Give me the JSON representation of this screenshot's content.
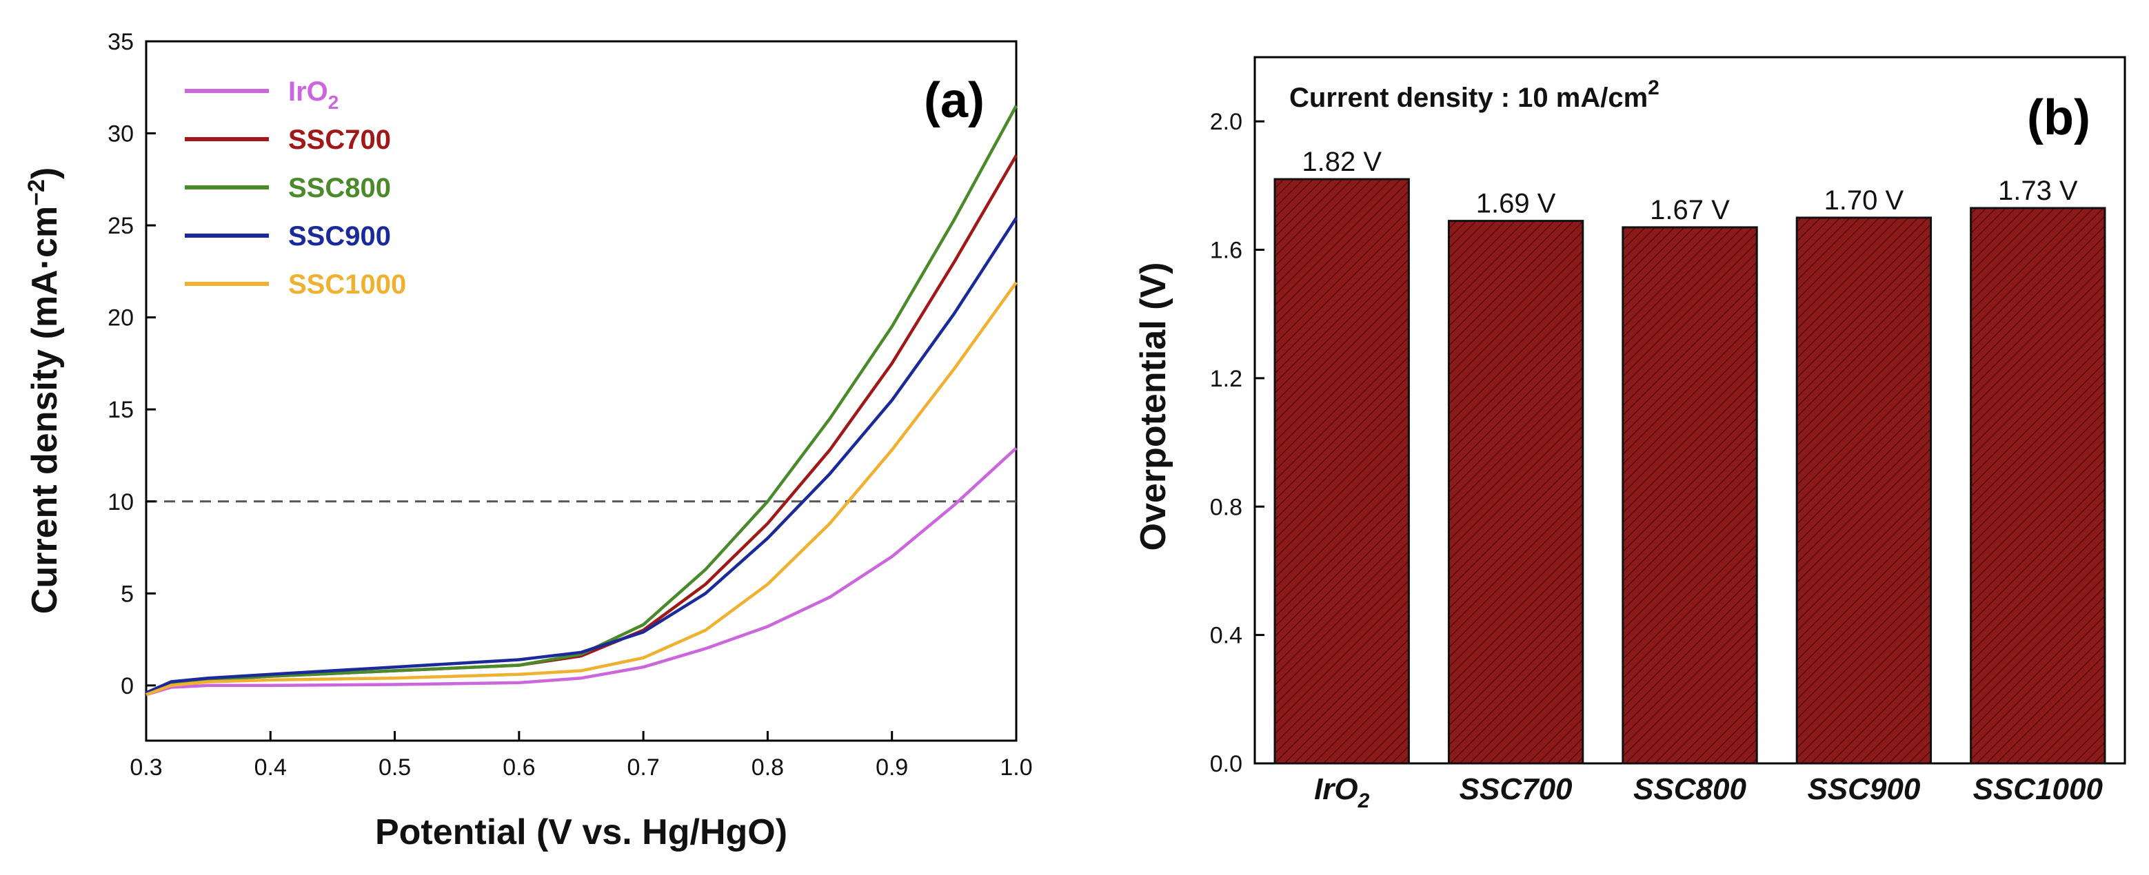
{
  "chart_data": [
    {
      "type": "line",
      "panel_label": "(a)",
      "xlabel": "Potential (V vs. Hg/HgO)",
      "ylabel": {
        "main": "Current density (mA·cm",
        "sup": "−2",
        "close": ")"
      },
      "xlim": [
        0.3,
        1.0
      ],
      "ylim": [
        -3,
        35
      ],
      "xticks": [
        0.3,
        0.4,
        0.5,
        0.6,
        0.7,
        0.8,
        0.9,
        1.0
      ],
      "xtick_labels": [
        "0.3",
        "0.4",
        "0.5",
        "0.6",
        "0.7",
        "0.8",
        "0.9",
        "1.0"
      ],
      "yticks": [
        0,
        5,
        10,
        15,
        20,
        25,
        30,
        35
      ],
      "ytick_labels": [
        "0",
        "5",
        "10",
        "15",
        "20",
        "25",
        "30",
        "35"
      ],
      "reference_line": {
        "y": 10,
        "style": "dashed"
      },
      "series": [
        {
          "name": "IrO",
          "sub": "2",
          "color": "#cc66dd",
          "x": [
            0.3,
            0.32,
            0.35,
            0.4,
            0.5,
            0.6,
            0.65,
            0.7,
            0.75,
            0.8,
            0.85,
            0.9,
            0.95,
            1.0
          ],
          "y": [
            -0.5,
            -0.1,
            0.0,
            0.0,
            0.05,
            0.15,
            0.4,
            1.0,
            2.0,
            3.2,
            4.8,
            7.0,
            9.8,
            12.9
          ]
        },
        {
          "name": "SSC700",
          "color": "#a01818",
          "x": [
            0.3,
            0.32,
            0.35,
            0.4,
            0.5,
            0.6,
            0.65,
            0.7,
            0.75,
            0.8,
            0.85,
            0.9,
            0.95,
            1.0
          ],
          "y": [
            -0.5,
            0.1,
            0.3,
            0.5,
            0.8,
            1.1,
            1.6,
            3.0,
            5.5,
            8.8,
            12.8,
            17.5,
            23.0,
            28.8
          ]
        },
        {
          "name": "SSC800",
          "color": "#4a8a2a",
          "x": [
            0.3,
            0.32,
            0.35,
            0.4,
            0.5,
            0.6,
            0.65,
            0.7,
            0.75,
            0.8,
            0.85,
            0.9,
            0.95,
            1.0
          ],
          "y": [
            -0.5,
            0.1,
            0.3,
            0.5,
            0.8,
            1.1,
            1.7,
            3.3,
            6.3,
            10.0,
            14.5,
            19.5,
            25.3,
            31.5
          ]
        },
        {
          "name": "SSC900",
          "color": "#1a2a9a",
          "x": [
            0.3,
            0.32,
            0.35,
            0.4,
            0.5,
            0.6,
            0.65,
            0.7,
            0.75,
            0.8,
            0.85,
            0.9,
            0.95,
            1.0
          ],
          "y": [
            -0.4,
            0.2,
            0.4,
            0.6,
            1.0,
            1.4,
            1.8,
            2.9,
            5.0,
            8.0,
            11.5,
            15.5,
            20.2,
            25.4
          ]
        },
        {
          "name": "SSC1000",
          "color": "#f0b030",
          "x": [
            0.3,
            0.32,
            0.35,
            0.4,
            0.5,
            0.6,
            0.65,
            0.7,
            0.75,
            0.8,
            0.85,
            0.9,
            0.95,
            1.0
          ],
          "y": [
            -0.5,
            0.0,
            0.2,
            0.3,
            0.4,
            0.6,
            0.8,
            1.5,
            3.0,
            5.5,
            8.8,
            12.8,
            17.2,
            21.9
          ]
        }
      ]
    },
    {
      "type": "bar",
      "panel_label": "(b)",
      "annotation": {
        "main": "Current density : 10 mA/cm",
        "sup": "2"
      },
      "ylabel": "Overpotential (V)",
      "ylim": [
        0.0,
        2.2
      ],
      "yticks": [
        0.0,
        0.4,
        0.8,
        1.2,
        1.6,
        2.0
      ],
      "ytick_labels": [
        "0.0",
        "0.4",
        "0.8",
        "1.2",
        "1.6",
        "2.0"
      ],
      "bar_color": "#8b1a1a",
      "categories": [
        {
          "name": "IrO",
          "sub": "2"
        },
        {
          "name": "SSC700"
        },
        {
          "name": "SSC800"
        },
        {
          "name": "SSC900"
        },
        {
          "name": "SSC1000"
        }
      ],
      "values": [
        1.82,
        1.69,
        1.67,
        1.7,
        1.73
      ],
      "value_labels": [
        "1.82 V",
        "1.69 V",
        "1.67 V",
        "1.70 V",
        "1.73 V"
      ]
    }
  ]
}
